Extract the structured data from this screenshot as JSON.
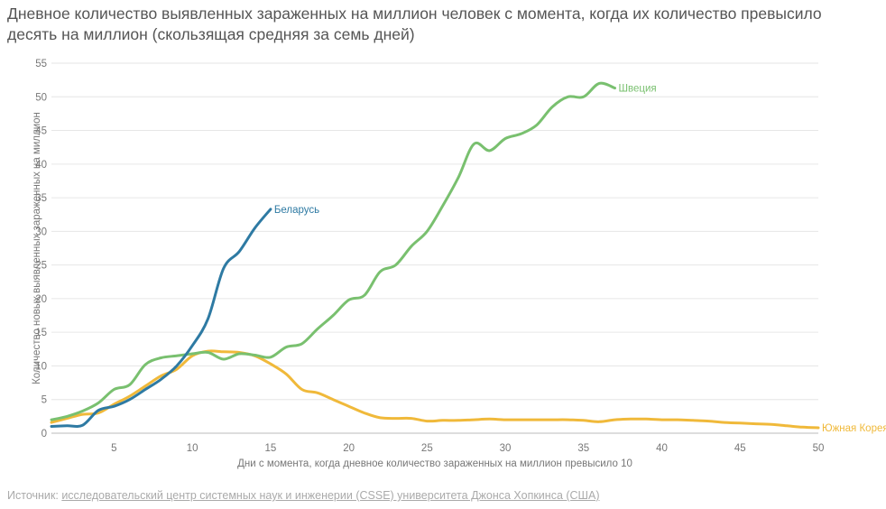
{
  "title": "Дневное количество выявленных зараженных на миллион человек с момента, когда их количество превысило десять на миллион (скользящая средняя за семь дней)",
  "source": {
    "prefix": "Источник: ",
    "link_text": "исследовательский центр системных наук и инженерии (CSSE) университета Джонса Хопкинса (США)"
  },
  "chart_data": {
    "type": "line",
    "title": "Дневное количество выявленных зараженных на миллион человек с момента, когда их количество превысило десять на миллион (скользящая средняя за семь дней)",
    "xlabel": "Дни с момента, когда дневное количество зараженных на миллион превысило 10",
    "ylabel": "Количество новых выявленных зараженных на миллион",
    "xlim": [
      1,
      50
    ],
    "ylim": [
      0,
      55
    ],
    "xticks": [
      5,
      10,
      15,
      20,
      25,
      30,
      35,
      40,
      45,
      50
    ],
    "yticks": [
      0,
      5,
      10,
      15,
      20,
      25,
      30,
      35,
      40,
      45,
      50,
      55
    ],
    "grid": true,
    "legend": "direct labels at line ends",
    "series": [
      {
        "name": "Беларусь",
        "color": "#2e7aa3",
        "points": [
          [
            1,
            1.0
          ],
          [
            2,
            1.1
          ],
          [
            3,
            1.2
          ],
          [
            4,
            3.4
          ],
          [
            5,
            4.0
          ],
          [
            6,
            5.0
          ],
          [
            7,
            6.5
          ],
          [
            8,
            8.0
          ],
          [
            9,
            10.0
          ],
          [
            10,
            13.0
          ],
          [
            11,
            17.0
          ],
          [
            12,
            24.5
          ],
          [
            13,
            27.0
          ],
          [
            14,
            30.5
          ],
          [
            15,
            33.3
          ]
        ]
      },
      {
        "name": "Швеция",
        "color": "#79c06f",
        "points": [
          [
            1,
            2.0
          ],
          [
            2,
            2.5
          ],
          [
            3,
            3.3
          ],
          [
            4,
            4.5
          ],
          [
            5,
            6.5
          ],
          [
            6,
            7.2
          ],
          [
            7,
            10.2
          ],
          [
            8,
            11.2
          ],
          [
            9,
            11.5
          ],
          [
            10,
            11.8
          ],
          [
            11,
            12.0
          ],
          [
            12,
            11.0
          ],
          [
            13,
            11.8
          ],
          [
            14,
            11.6
          ],
          [
            15,
            11.3
          ],
          [
            16,
            12.8
          ],
          [
            17,
            13.3
          ],
          [
            18,
            15.5
          ],
          [
            19,
            17.5
          ],
          [
            20,
            19.8
          ],
          [
            21,
            20.5
          ],
          [
            22,
            24.0
          ],
          [
            23,
            25.0
          ],
          [
            24,
            27.8
          ],
          [
            25,
            30.0
          ],
          [
            26,
            33.8
          ],
          [
            27,
            38.0
          ],
          [
            28,
            43.0
          ],
          [
            29,
            42.0
          ],
          [
            30,
            43.8
          ],
          [
            31,
            44.5
          ],
          [
            32,
            45.8
          ],
          [
            33,
            48.5
          ],
          [
            34,
            50.0
          ],
          [
            35,
            50.0
          ],
          [
            36,
            52.0
          ],
          [
            37,
            51.3
          ]
        ]
      },
      {
        "name": "Южная Корея",
        "color": "#f0b93a",
        "points": [
          [
            1,
            1.6
          ],
          [
            2,
            2.2
          ],
          [
            3,
            2.8
          ],
          [
            4,
            3.0
          ],
          [
            5,
            4.3
          ],
          [
            6,
            5.5
          ],
          [
            7,
            7.0
          ],
          [
            8,
            8.5
          ],
          [
            9,
            9.5
          ],
          [
            10,
            11.5
          ],
          [
            11,
            12.2
          ],
          [
            12,
            12.1
          ],
          [
            13,
            12.0
          ],
          [
            14,
            11.5
          ],
          [
            15,
            10.3
          ],
          [
            16,
            8.8
          ],
          [
            17,
            6.5
          ],
          [
            18,
            6.0
          ],
          [
            19,
            5.0
          ],
          [
            20,
            4.0
          ],
          [
            21,
            3.0
          ],
          [
            22,
            2.3
          ],
          [
            23,
            2.2
          ],
          [
            24,
            2.2
          ],
          [
            25,
            1.8
          ],
          [
            26,
            1.9
          ],
          [
            27,
            1.9
          ],
          [
            28,
            2.0
          ],
          [
            29,
            2.1
          ],
          [
            30,
            2.0
          ],
          [
            31,
            2.0
          ],
          [
            32,
            2.0
          ],
          [
            33,
            2.0
          ],
          [
            34,
            2.0
          ],
          [
            35,
            1.9
          ],
          [
            36,
            1.7
          ],
          [
            37,
            2.0
          ],
          [
            38,
            2.1
          ],
          [
            39,
            2.1
          ],
          [
            40,
            2.0
          ],
          [
            41,
            2.0
          ],
          [
            42,
            1.9
          ],
          [
            43,
            1.8
          ],
          [
            44,
            1.6
          ],
          [
            45,
            1.5
          ],
          [
            46,
            1.4
          ],
          [
            47,
            1.3
          ],
          [
            48,
            1.1
          ],
          [
            49,
            0.9
          ],
          [
            50,
            0.8
          ]
        ]
      }
    ]
  }
}
